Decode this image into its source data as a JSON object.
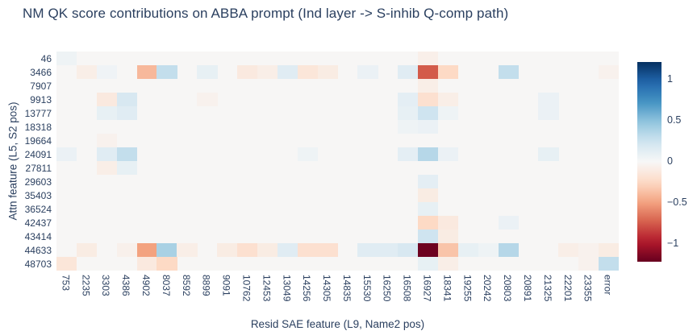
{
  "figure": {
    "title": "NM QK score contributions on ABBA prompt (Ind layer -> S-inhib Q-comp path)",
    "text_color": "#2a3f5f",
    "background_color": "#ffffff",
    "plot_background_color": "#f7f6f5"
  },
  "chart_data": {
    "type": "heatmap",
    "title": "NM QK score contributions on ABBA prompt (Ind layer -> S-inhib Q-comp path)",
    "xlabel": "Resid SAE feature (L9, Name2 pos)",
    "ylabel": "Attn feature (L5, S2 pos)",
    "x": [
      "753",
      "2235",
      "3303",
      "4386",
      "4902",
      "8037",
      "8592",
      "8899",
      "9091",
      "10762",
      "12453",
      "13049",
      "14256",
      "14305",
      "14835",
      "15530",
      "16250",
      "16508",
      "16927",
      "18341",
      "19255",
      "20242",
      "20803",
      "20891",
      "21325",
      "22201",
      "23355",
      "error"
    ],
    "y": [
      "46",
      "3466",
      "7907",
      "9913",
      "13777",
      "18318",
      "19664",
      "24091",
      "27811",
      "29603",
      "35403",
      "36524",
      "42437",
      "43414",
      "44633",
      "48703"
    ],
    "z": [
      [
        0.06,
        0,
        0,
        0,
        0,
        0,
        0,
        0,
        0,
        0,
        0,
        0,
        0,
        0,
        0,
        0,
        0,
        0,
        -0.07,
        0,
        0,
        0,
        0,
        0,
        0,
        0,
        0,
        0
      ],
      [
        0,
        -0.08,
        0.05,
        0,
        -0.4,
        0.3,
        0,
        0.1,
        0,
        -0.12,
        -0.08,
        0.15,
        -0.15,
        -0.1,
        0,
        0.08,
        0,
        0.15,
        -0.75,
        -0.25,
        0,
        0,
        0.3,
        0,
        0,
        0,
        0,
        -0.05
      ],
      [
        0,
        0,
        0,
        0,
        0,
        0,
        0,
        0,
        0,
        0,
        0,
        0,
        0,
        0,
        0,
        0,
        0,
        0,
        -0.08,
        0,
        0,
        0,
        0,
        0,
        0,
        0,
        0,
        0
      ],
      [
        0,
        0,
        -0.12,
        0.2,
        0,
        0,
        0,
        -0.05,
        0,
        0,
        0,
        0,
        0,
        0,
        0,
        0,
        0,
        0.12,
        -0.2,
        -0.08,
        0,
        0,
        0,
        0,
        0.08,
        0,
        0,
        0
      ],
      [
        0,
        0,
        0.1,
        0.15,
        0,
        0,
        0,
        0,
        0,
        0,
        0,
        0,
        0,
        0,
        0,
        0,
        0,
        0.1,
        0.25,
        0.06,
        0,
        0,
        0,
        0,
        0.08,
        0,
        0,
        0
      ],
      [
        0,
        0,
        0,
        0,
        0,
        0,
        0,
        0,
        0,
        0,
        0,
        0,
        0,
        0,
        0,
        0,
        0,
        0.06,
        0.08,
        0,
        0,
        0,
        0,
        0,
        0,
        0,
        0,
        0
      ],
      [
        0,
        0,
        -0.05,
        0,
        0,
        0,
        0,
        0,
        0,
        0,
        0,
        0,
        0,
        0,
        0,
        0,
        0,
        0,
        0,
        0,
        0,
        0,
        0,
        0,
        0,
        0,
        0,
        0
      ],
      [
        0.08,
        0,
        0.15,
        0.3,
        0,
        0,
        0,
        0,
        0,
        0,
        0,
        0,
        0.06,
        0,
        0,
        0,
        0,
        0.12,
        0.35,
        0.08,
        0,
        0,
        0,
        0,
        0.1,
        0,
        0,
        0
      ],
      [
        0,
        0,
        -0.08,
        0.1,
        0,
        0,
        0,
        0,
        0,
        0,
        0,
        0,
        0,
        0,
        0,
        0,
        0,
        0,
        0,
        0,
        0,
        0,
        0,
        0,
        0,
        0,
        0,
        0
      ],
      [
        0,
        0,
        0,
        0,
        0,
        0,
        0,
        0,
        0,
        0,
        0,
        0,
        0,
        0,
        0,
        0,
        0,
        0,
        0.12,
        0,
        0,
        0,
        0,
        0,
        0,
        0,
        0,
        0
      ],
      [
        0,
        0,
        0,
        0,
        0,
        0,
        0,
        0,
        0,
        0,
        0,
        0,
        0,
        0,
        0,
        0,
        0,
        0,
        -0.1,
        0,
        0,
        0,
        0,
        0,
        0,
        0,
        0,
        0
      ],
      [
        0,
        0,
        0,
        0,
        0,
        0,
        0,
        0,
        0,
        0,
        0,
        0,
        0,
        0,
        0,
        0,
        0,
        0,
        0.1,
        0,
        0,
        0,
        0,
        0,
        0,
        0,
        0,
        0
      ],
      [
        0,
        0,
        0,
        0,
        0,
        0,
        0,
        0,
        0,
        0,
        0,
        0,
        0,
        0,
        0,
        0,
        0,
        0,
        -0.25,
        -0.12,
        0,
        0,
        0.08,
        0,
        0,
        0,
        0,
        0
      ],
      [
        0,
        0,
        0,
        0,
        0,
        0,
        0,
        0,
        0,
        0,
        0,
        0,
        0,
        0,
        0,
        0,
        0,
        0,
        0.25,
        -0.1,
        0,
        0,
        0,
        0,
        0,
        0,
        0,
        0
      ],
      [
        0,
        -0.1,
        0,
        -0.06,
        -0.5,
        0.4,
        -0.08,
        0,
        -0.1,
        -0.2,
        -0.1,
        0.15,
        -0.2,
        -0.2,
        0,
        0.15,
        0.15,
        0.2,
        -1.2,
        -0.35,
        0.1,
        0.06,
        0.35,
        0,
        0,
        -0.08,
        -0.05,
        -0.1
      ],
      [
        -0.15,
        0,
        0,
        0,
        -0.12,
        -0.25,
        0,
        0,
        0,
        0,
        0,
        0,
        0,
        0,
        0,
        0,
        0,
        0,
        0.1,
        -0.08,
        0,
        0,
        0,
        0,
        0,
        0,
        -0.05,
        0.3
      ]
    ],
    "zmin": -1.2,
    "zmax": 1.22,
    "grid": false,
    "legend_position": "right-colorbar",
    "colorscale_name": "RdBu (blue = positive, red = negative)",
    "colorscale_stops": [
      [
        -1.0,
        "#67001f"
      ],
      [
        -0.8,
        "#b2182b"
      ],
      [
        -0.6,
        "#d6604d"
      ],
      [
        -0.4,
        "#f4a582"
      ],
      [
        -0.2,
        "#fddbc7"
      ],
      [
        0.0,
        "#f7f7f7"
      ],
      [
        0.2,
        "#d1e5f0"
      ],
      [
        0.4,
        "#92c5de"
      ],
      [
        0.6,
        "#4393c3"
      ],
      [
        0.8,
        "#2166ac"
      ],
      [
        1.0,
        "#053061"
      ]
    ],
    "colorbar_ticks": [
      {
        "value": 1,
        "label": "1"
      },
      {
        "value": 0.5,
        "label": "0.5"
      },
      {
        "value": 0,
        "label": "0"
      },
      {
        "value": -0.5,
        "label": "−0.5"
      },
      {
        "value": -1,
        "label": "−1"
      }
    ]
  }
}
